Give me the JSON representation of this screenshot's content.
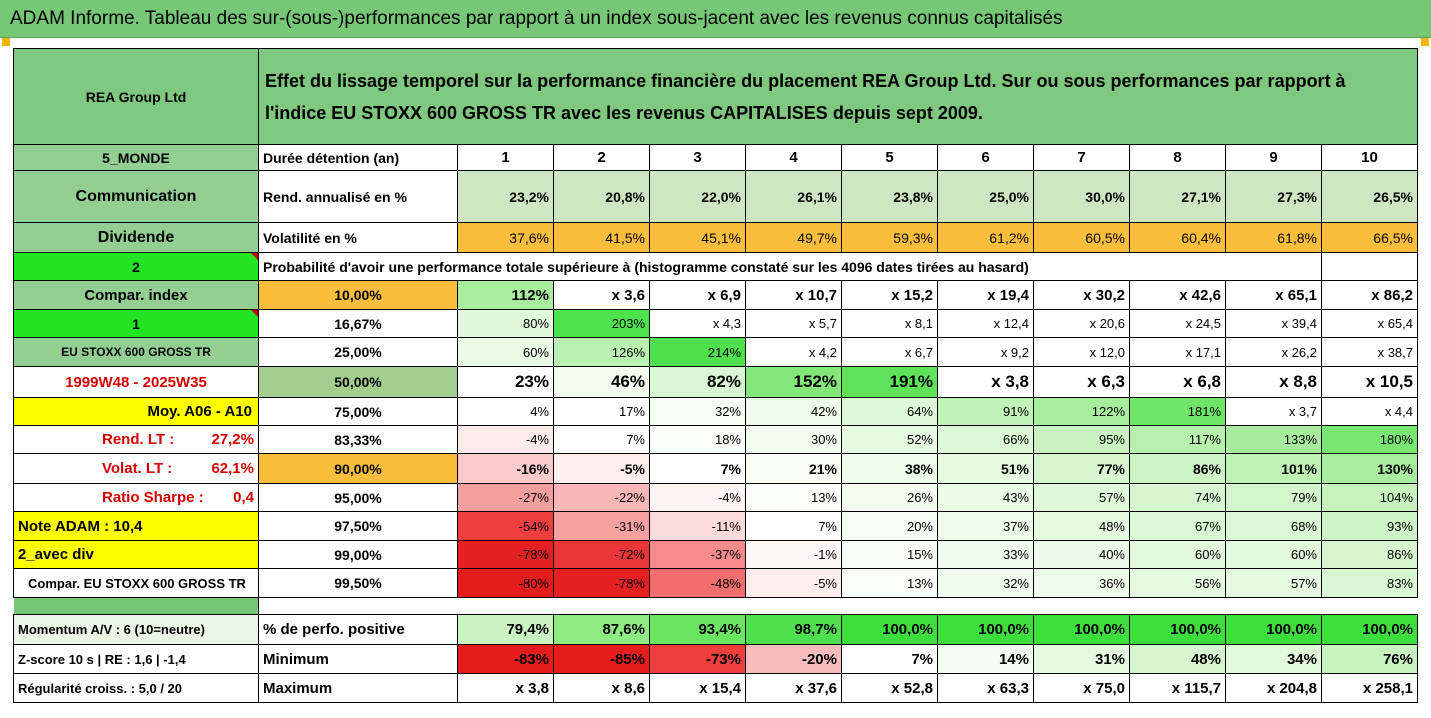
{
  "banner": "ADAM Informe. Tableau des sur-(sous-)performances par rapport à un index sous-jacent avec les revenus connus capitalisés",
  "header": {
    "company": "REA Group Ltd",
    "description_line1": "Effet du lissage temporel sur la performance financière du placement REA Group Ltd. Sur ou sous performances par rapport à",
    "description_line2": "l'indice EU STOXX 600 GROSS TR avec les revenus CAPITALISES depuis sept 2009."
  },
  "side": {
    "zone": "5_MONDE",
    "sector": "Communication",
    "type": "Dividende",
    "code1": "2",
    "compar_index": "Compar. index",
    "code2": "1",
    "index_name": "EU STOXX 600 GROSS TR",
    "period": "1999W48 - 2025W35",
    "moy": "Moy. A06 - A10",
    "rend_lt_label": "Rend. LT :",
    "rend_lt_value": "27,2%",
    "volat_lt_label": "Volat. LT :",
    "volat_lt_value": "62,1%",
    "sharpe_label": "Ratio Sharpe :",
    "sharpe_value": "0,4",
    "note": "Note ADAM : 10,4",
    "avec_div": "2_avec div",
    "compar_full": "Compar. EU STOXX 600 GROSS TR",
    "momentum": "Momentum A/V : 6 (10=neutre)",
    "zscore": "Z-score 10 s  |  RE : 1,6  |  -1,4",
    "regularite": "Régularité croiss. : 5,0 / 20"
  },
  "labels": {
    "duree": "Durée détention (an)",
    "rend": "Rend. annualisé en %",
    "volat": "Volatilité en %",
    "proba": "Probabilité d'avoir une performance totale supérieure à (histogramme constaté sur les 4096 dates tirées au hasard)",
    "perf_pos": "% de perfo. positive",
    "minimum": "Minimum",
    "maximum": "Maximum"
  },
  "years": [
    "1",
    "2",
    "3",
    "4",
    "5",
    "6",
    "7",
    "8",
    "9",
    "10"
  ],
  "rend": [
    "23,2%",
    "20,8%",
    "22,0%",
    "26,1%",
    "23,8%",
    "25,0%",
    "30,0%",
    "27,1%",
    "27,3%",
    "26,5%"
  ],
  "volat": [
    "37,6%",
    "41,5%",
    "45,1%",
    "49,7%",
    "59,3%",
    "61,2%",
    "60,5%",
    "60,4%",
    "61,8%",
    "66,5%"
  ],
  "prob_rows": [
    {
      "pct": "10,00%",
      "vals": [
        "112%",
        "x 3,6",
        "x 6,9",
        "x 10,7",
        "x 15,2",
        "x 19,4",
        "x 30,2",
        "x 42,6",
        "x 65,1",
        "x 86,2"
      ]
    },
    {
      "pct": "16,67%",
      "vals": [
        "80%",
        "203%",
        "x 4,3",
        "x 5,7",
        "x 8,1",
        "x 12,4",
        "x 20,6",
        "x 24,5",
        "x 39,4",
        "x 65,4"
      ]
    },
    {
      "pct": "25,00%",
      "vals": [
        "60%",
        "126%",
        "214%",
        "x 4,2",
        "x 6,7",
        "x 9,2",
        "x 12,0",
        "x 17,1",
        "x 26,2",
        "x 38,7"
      ]
    },
    {
      "pct": "50,00%",
      "vals": [
        "23%",
        "46%",
        "82%",
        "152%",
        "191%",
        "x 3,8",
        "x 6,3",
        "x 6,8",
        "x 8,8",
        "x 10,5"
      ]
    },
    {
      "pct": "75,00%",
      "vals": [
        "4%",
        "17%",
        "32%",
        "42%",
        "64%",
        "91%",
        "122%",
        "181%",
        "x 3,7",
        "x 4,4"
      ]
    },
    {
      "pct": "83,33%",
      "vals": [
        "-4%",
        "7%",
        "18%",
        "30%",
        "52%",
        "66%",
        "95%",
        "117%",
        "133%",
        "180%"
      ]
    },
    {
      "pct": "90,00%",
      "vals": [
        "-16%",
        "-5%",
        "7%",
        "21%",
        "38%",
        "51%",
        "77%",
        "86%",
        "101%",
        "130%"
      ]
    },
    {
      "pct": "95,00%",
      "vals": [
        "-27%",
        "-22%",
        "-4%",
        "13%",
        "26%",
        "43%",
        "57%",
        "74%",
        "79%",
        "104%"
      ]
    },
    {
      "pct": "97,50%",
      "vals": [
        "-54%",
        "-31%",
        "-11%",
        "7%",
        "20%",
        "37%",
        "48%",
        "67%",
        "68%",
        "93%"
      ]
    },
    {
      "pct": "99,00%",
      "vals": [
        "-78%",
        "-72%",
        "-37%",
        "-1%",
        "15%",
        "33%",
        "40%",
        "60%",
        "60%",
        "86%"
      ]
    },
    {
      "pct": "99,50%",
      "vals": [
        "-80%",
        "-78%",
        "-48%",
        "-5%",
        "13%",
        "32%",
        "36%",
        "56%",
        "57%",
        "83%"
      ]
    }
  ],
  "perf_pos": [
    "79,4%",
    "87,6%",
    "93,4%",
    "98,7%",
    "100,0%",
    "100,0%",
    "100,0%",
    "100,0%",
    "100,0%",
    "100,0%"
  ],
  "minimum": [
    "-83%",
    "-85%",
    "-73%",
    "-20%",
    "7%",
    "14%",
    "31%",
    "48%",
    "34%",
    "76%"
  ],
  "maximum": [
    "x 3,8",
    "x 8,6",
    "x 15,4",
    "x 37,6",
    "x 52,8",
    "x 63,3",
    "x 75,0",
    "x 115,7",
    "x 204,8",
    "x 258,1"
  ],
  "colors": {
    "rend": [
      "#cfe6c2",
      "#cfe6c2",
      "#cfe6c2",
      "#cfe6c2",
      "#cfe6c2",
      "#cfe6c2",
      "#cfe6c2",
      "#cfe6c2",
      "#cfe6c2",
      "#cfe6c2"
    ],
    "volat": [
      "#fbbd3c",
      "#fbbd3c",
      "#fbbd3c",
      "#fbbd3c",
      "#fbbd3c",
      "#fbbd3c",
      "#fbbd3c",
      "#fbbd3c",
      "#fbbd3c",
      "#fbbd3c"
    ],
    "prob": [
      [
        "#a8ed9e",
        "#ffffff",
        "#ffffff",
        "#ffffff",
        "#ffffff",
        "#ffffff",
        "#ffffff",
        "#ffffff",
        "#ffffff",
        "#ffffff"
      ],
      [
        "#e0f8dc",
        "#4ee34e",
        "#ffffff",
        "#ffffff",
        "#ffffff",
        "#ffffff",
        "#ffffff",
        "#ffffff",
        "#ffffff",
        "#ffffff"
      ],
      [
        "#eafbe6",
        "#b9f1b0",
        "#4fe04f",
        "#ffffff",
        "#ffffff",
        "#ffffff",
        "#ffffff",
        "#ffffff",
        "#ffffff",
        "#ffffff"
      ],
      [
        "#ffffff",
        "#f2fcef",
        "#d8f7d2",
        "#84e77a",
        "#5fe25a",
        "#ffffff",
        "#ffffff",
        "#ffffff",
        "#ffffff",
        "#ffffff"
      ],
      [
        "#ffffff",
        "#ffffff",
        "#f6fdf4",
        "#eefcea",
        "#def8d8",
        "#c1f2b8",
        "#a8ed9e",
        "#6fe466",
        "#ffffff",
        "#ffffff"
      ],
      [
        "#fdeaea",
        "#ffffff",
        "#fafefa",
        "#f2fcef",
        "#e6f9e1",
        "#dcf8d6",
        "#c8f3c0",
        "#b6f0ac",
        "#a6ec9c",
        "#7ae672"
      ],
      [
        "#fbc9c9",
        "#fff0f0",
        "#ffffff",
        "#f8fdf6",
        "#eefcea",
        "#e6f9e1",
        "#d6f6cf",
        "#ccf4c5",
        "#bdf2b3",
        "#a8ed9e"
      ],
      [
        "#f59e9e",
        "#f8b6b6",
        "#fff4f4",
        "#fbfefa",
        "#f2fcef",
        "#eafbe6",
        "#e1f9db",
        "#d6f6cf",
        "#d2f5cb",
        "#c6f3be"
      ],
      [
        "#ee3e3e",
        "#f6a0a0",
        "#fcdada",
        "#ffffff",
        "#f6fdf4",
        "#edfbe9",
        "#e6f9e1",
        "#dbf8d5",
        "#dbf8d5",
        "#cdf4c6"
      ],
      [
        "#e52020",
        "#ea3636",
        "#f48a8a",
        "#fff6f6",
        "#f8fdf6",
        "#f0fced",
        "#ecfbe8",
        "#e3f9dd",
        "#e3f9dd",
        "#d6f6cf"
      ],
      [
        "#e41c1c",
        "#e52020",
        "#f26e6e",
        "#ffeeee",
        "#fafefa",
        "#f0fced",
        "#eefcea",
        "#e5f9e0",
        "#e5f9e0",
        "#d9f7d2"
      ]
    ],
    "perf_pos": [
      "#c9f3c0",
      "#8deb82",
      "#6ae562",
      "#4fe04f",
      "#3ddd3d",
      "#3ddd3d",
      "#3ddd3d",
      "#3ddd3d",
      "#3ddd3d",
      "#3ddd3d"
    ],
    "minimum": [
      "#e41c1c",
      "#e41c1c",
      "#ee3e3e",
      "#f9bcbc",
      "#ffffff",
      "#f4fdf2",
      "#e6f9e1",
      "#d6f6cf",
      "#e2f9dc",
      "#c6f3be"
    ],
    "maximum": [
      "#ffffff",
      "#ffffff",
      "#ffffff",
      "#ffffff",
      "#ffffff",
      "#ffffff",
      "#ffffff",
      "#ffffff",
      "#ffffff",
      "#ffffff"
    ]
  }
}
